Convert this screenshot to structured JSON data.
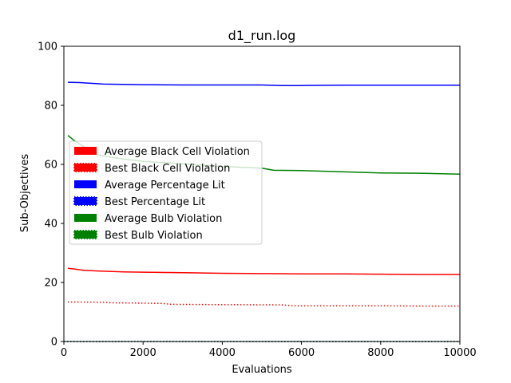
{
  "chart_data": {
    "type": "line",
    "title": "d1_run.log",
    "xlabel": "Evaluations",
    "ylabel": "Sub-Objectives",
    "xlim": [
      0,
      10000
    ],
    "ylim": [
      0,
      100
    ],
    "x_ticks": [
      "0",
      "2000",
      "4000",
      "6000",
      "8000",
      "10000"
    ],
    "y_ticks": [
      "0",
      "20",
      "40",
      "60",
      "80",
      "100"
    ],
    "grid": false,
    "legend_position": "center-left",
    "series": [
      {
        "name": "Average Black Cell Violation",
        "color": "#ff0000",
        "style": "solid",
        "x": [
          100,
          300,
          500,
          1000,
          1500,
          2000,
          3000,
          4000,
          5000,
          6000,
          7000,
          8000,
          9000,
          10000
        ],
        "y": [
          24.8,
          24.5,
          24.1,
          23.8,
          23.6,
          23.5,
          23.3,
          23.1,
          23.0,
          22.9,
          22.9,
          22.8,
          22.7,
          22.7
        ]
      },
      {
        "name": "Best Black Cell Violation",
        "color": "#ff0000",
        "style": "dotted",
        "x": [
          100,
          1000,
          1200,
          2000,
          2500,
          2700,
          4000,
          5500,
          5800,
          7000,
          8000,
          9000,
          10000
        ],
        "y": [
          13.4,
          13.3,
          13.1,
          13.0,
          12.9,
          12.6,
          12.5,
          12.4,
          12.1,
          12.1,
          12.1,
          12.0,
          12.0
        ]
      },
      {
        "name": "Average Percentage Lit",
        "color": "#0000ff",
        "style": "solid",
        "x": [
          100,
          400,
          1000,
          2000,
          3000,
          4000,
          5000,
          5500,
          6000,
          7000,
          8000,
          9000,
          10000
        ],
        "y": [
          87.8,
          87.7,
          87.2,
          87.0,
          86.9,
          86.9,
          86.9,
          86.7,
          86.7,
          86.8,
          86.8,
          86.8,
          86.8
        ]
      },
      {
        "name": "Best Percentage Lit",
        "color": "#0000ff",
        "style": "dotted",
        "x": [
          0,
          10000
        ],
        "y": [
          0,
          0
        ]
      },
      {
        "name": "Average Bulb Violation",
        "color": "#008000",
        "style": "solid",
        "x": [
          100,
          250,
          500,
          800,
          1000,
          1500,
          2000,
          2500,
          3000,
          4000,
          5000,
          5300,
          6000,
          7000,
          8000,
          9000,
          10000
        ],
        "y": [
          69.8,
          68.2,
          66.0,
          63.5,
          62.8,
          61.8,
          61.0,
          60.6,
          60.2,
          59.3,
          58.7,
          58.0,
          57.9,
          57.5,
          57.1,
          57.0,
          56.7
        ]
      },
      {
        "name": "Best Bulb Violation",
        "color": "#008000",
        "style": "dotted",
        "x": [
          0,
          10000
        ],
        "y": [
          0,
          0
        ]
      }
    ]
  }
}
